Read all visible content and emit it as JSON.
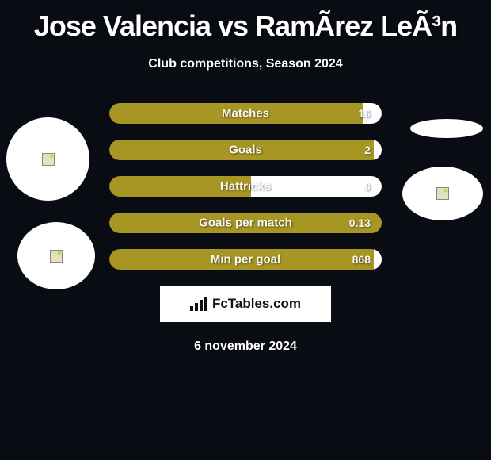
{
  "header": {
    "title": "Jose Valencia vs RamÃ­rez LeÃ³n",
    "subtitle": "Club competitions, Season 2024"
  },
  "stats": {
    "bars": [
      {
        "label": "Matches",
        "value": "16",
        "left_pct": 93
      },
      {
        "label": "Goals",
        "value": "2",
        "left_pct": 97
      },
      {
        "label": "Hattricks",
        "value": "0",
        "left_pct": 52
      },
      {
        "label": "Goals per match",
        "value": "0.13",
        "left_pct": 100
      },
      {
        "label": "Min per goal",
        "value": "868",
        "left_pct": 97
      }
    ],
    "bar_left_color": "#a79524",
    "bar_right_color": "#ffffff",
    "bar_label_color": "#ffffff"
  },
  "branding": {
    "logo_text": "FcTables.com"
  },
  "footer": {
    "date": "6 november 2024"
  },
  "colors": {
    "background": "#0a0c14",
    "text": "#ffffff"
  }
}
